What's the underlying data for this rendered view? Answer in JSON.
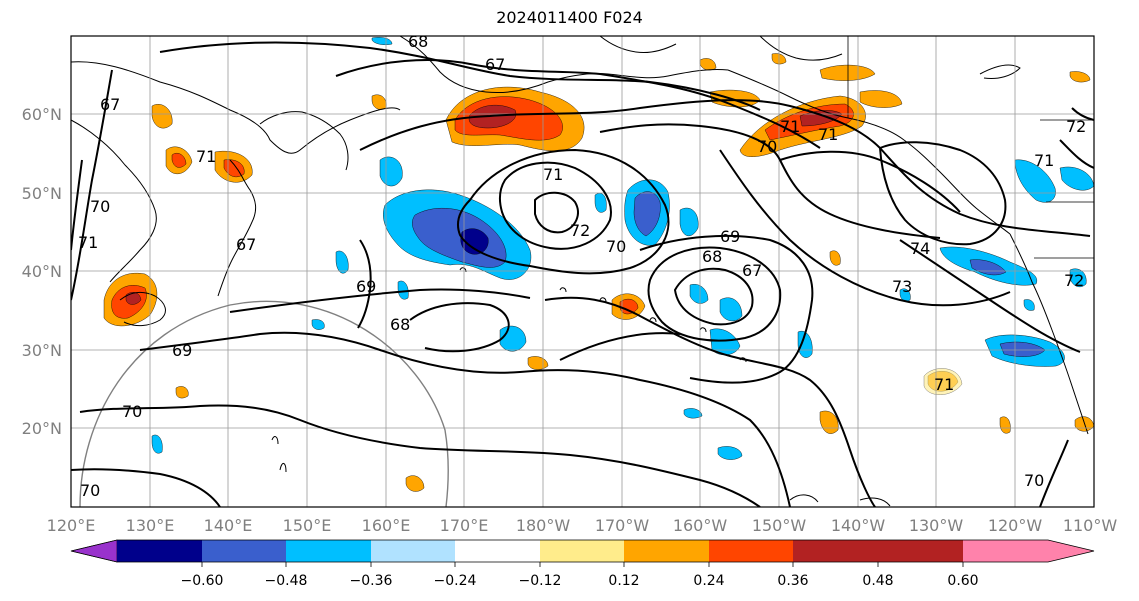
{
  "title": "2024011400 F024",
  "map": {
    "lat_labels": [
      "60°N",
      "50°N",
      "40°N",
      "30°N",
      "20°N"
    ],
    "lon_labels": [
      "120°E",
      "130°E",
      "140°E",
      "150°E",
      "160°E",
      "170°E",
      "180°W",
      "170°W",
      "160°W",
      "150°W",
      "140°W",
      "130°W",
      "120°W",
      "110°W"
    ],
    "contour_labels": [
      "68",
      "67",
      "71",
      "72",
      "70",
      "71",
      "71",
      "67",
      "67",
      "70",
      "71",
      "72",
      "70",
      "69",
      "68",
      "67",
      "69",
      "68",
      "69",
      "70",
      "70",
      "74",
      "73",
      "71",
      "72",
      "71",
      "70",
      "71"
    ]
  },
  "colorbar": {
    "tick_labels": [
      "−0.60",
      "−0.48",
      "−0.36",
      "−0.24",
      "−0.12",
      "0.12",
      "0.24",
      "0.36",
      "0.48",
      "0.60"
    ],
    "colors": [
      "#9932cc",
      "#00008b",
      "#3a5fcd",
      "#00bfff",
      "#b0e2ff",
      "#ffffff",
      "#ffec8b",
      "#ffa500",
      "#ff4500",
      "#b22222",
      "#ff82ab"
    ]
  },
  "fill_colors": {
    "neg1": "#b0e2ff",
    "neg2": "#00bfff",
    "neg3": "#3a5fcd",
    "neg4": "#00008b",
    "pos1": "#ffec8b",
    "pos2": "#ffa500",
    "pos3": "#ff4500",
    "pos4": "#b22222"
  }
}
